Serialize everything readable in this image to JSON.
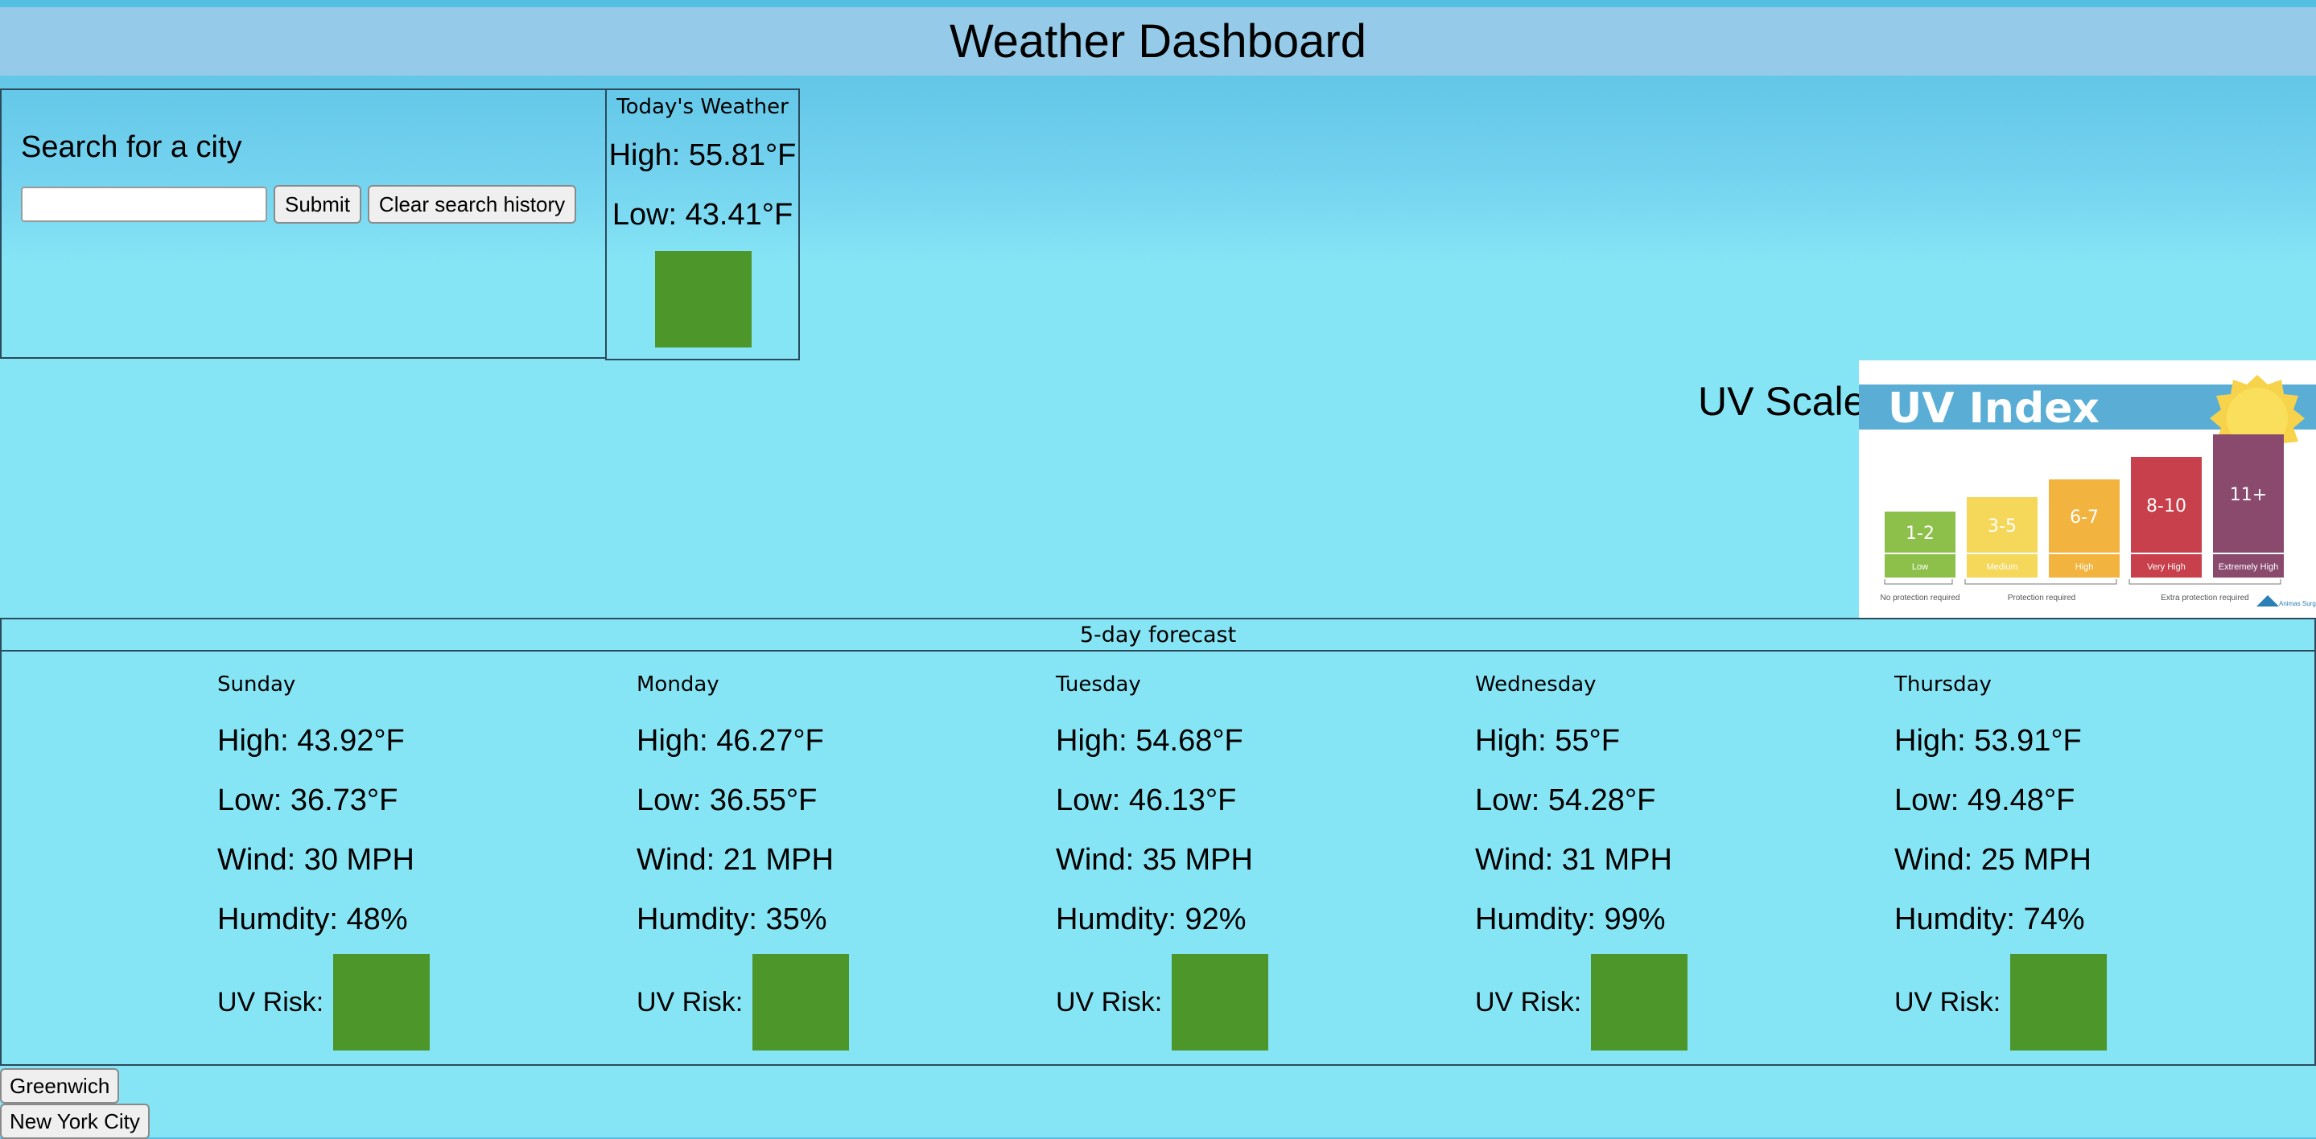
{
  "header": {
    "title": "Weather Dashboard"
  },
  "search": {
    "heading": "Search for a city",
    "input_value": "",
    "placeholder": "",
    "submit_label": "Submit",
    "clear_label": "Clear search history"
  },
  "today": {
    "title": "Today's Weather",
    "high": "High: 55.81°F",
    "low": "Low: 43.41°F"
  },
  "uv_scale": {
    "label": "UV Scale",
    "graphic_title": "UV Index",
    "levels": [
      {
        "range": "1-2",
        "name": "Low",
        "color": "#8cc04b"
      },
      {
        "range": "3-5",
        "name": "Medium",
        "color": "#f5d75a"
      },
      {
        "range": "6-7",
        "name": "High",
        "color": "#f2b33f"
      },
      {
        "range": "8-10",
        "name": "Very High",
        "color": "#c8404b"
      },
      {
        "range": "11+",
        "name": "Extremely High",
        "color": "#8a4a6e"
      }
    ],
    "notes": [
      "No protection required",
      "Protection required",
      "Extra protection required"
    ],
    "logo": "Animas Surgical Hospital"
  },
  "forecast": {
    "title": "5-day forecast",
    "uv_label": "UV Risk:",
    "days": [
      {
        "name": "Sunday",
        "high": "High: 43.92°F",
        "low": "Low: 36.73°F",
        "wind": "Wind: 30 MPH",
        "humidity": "Humdity: 48%"
      },
      {
        "name": "Monday",
        "high": "High: 46.27°F",
        "low": "Low: 36.55°F",
        "wind": "Wind: 21 MPH",
        "humidity": "Humdity: 35%"
      },
      {
        "name": "Tuesday",
        "high": "High: 54.68°F",
        "low": "Low: 46.13°F",
        "wind": "Wind: 35 MPH",
        "humidity": "Humdity: 92%"
      },
      {
        "name": "Wednesday",
        "high": "High: 55°F",
        "low": "Low: 54.28°F",
        "wind": "Wind: 31 MPH",
        "humidity": "Humdity: 99%"
      },
      {
        "name": "Thursday",
        "high": "High: 53.91°F",
        "low": "Low: 49.48°F",
        "wind": "Wind: 25 MPH",
        "humidity": "Humdity: 74%"
      }
    ]
  },
  "history": [
    "Greenwich",
    "New York City"
  ],
  "colors": {
    "uv_risk": "#4c962a",
    "header_bg": "#95cbe8",
    "page_bg": "#86e5f5"
  }
}
